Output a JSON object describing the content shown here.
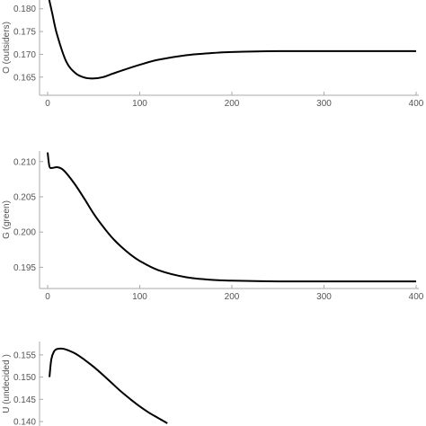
{
  "chart_data": [
    {
      "type": "line",
      "ylabel": "O (outsiders)",
      "xlim": [
        0,
        400
      ],
      "ylim": [
        0.162,
        0.1835
      ],
      "xticks": [
        0,
        100,
        200,
        300,
        400
      ],
      "yticks": [
        0.165,
        0.17,
        0.175,
        0.18
      ],
      "grid": false,
      "series": [
        {
          "color": "#000000",
          "x": [
            0,
            5,
            10,
            20,
            30,
            40,
            50,
            60,
            70,
            80,
            100,
            120,
            150,
            180,
            200,
            250,
            300,
            350,
            400
          ],
          "y": [
            0.1835,
            0.179,
            0.1745,
            0.1685,
            0.1659,
            0.1649,
            0.1647,
            0.165,
            0.1657,
            0.1664,
            0.1677,
            0.1688,
            0.1698,
            0.1703,
            0.1705,
            0.1707,
            0.1707,
            0.1707,
            0.1707
          ]
        }
      ]
    },
    {
      "type": "line",
      "ylabel": "G (green)",
      "xlim": [
        0,
        400
      ],
      "ylim": [
        0.1925,
        0.2115
      ],
      "xticks": [
        0,
        100,
        200,
        300,
        400
      ],
      "yticks": [
        0.195,
        0.2,
        0.205,
        0.21
      ],
      "grid": false,
      "series": [
        {
          "color": "#000000",
          "x": [
            0,
            2,
            5,
            10,
            15,
            20,
            30,
            40,
            50,
            60,
            70,
            80,
            90,
            100,
            120,
            150,
            180,
            200,
            250,
            300,
            350,
            400
          ],
          "y": [
            0.2113,
            0.2093,
            0.2091,
            0.2092,
            0.209,
            0.2084,
            0.2067,
            0.2047,
            0.2026,
            0.2008,
            0.1992,
            0.1979,
            0.1968,
            0.1959,
            0.1946,
            0.1936,
            0.1932,
            0.1931,
            0.193,
            0.193,
            0.193,
            0.193
          ]
        }
      ]
    },
    {
      "type": "line",
      "ylabel": "U (undecided )",
      "xlim": [
        0,
        400
      ],
      "ylim": [
        0.139,
        0.158
      ],
      "yticks": [
        0.14,
        0.145,
        0.15,
        0.155
      ],
      "grid": false,
      "series": [
        {
          "color": "#000000",
          "x": [
            2,
            4,
            7,
            10,
            15,
            20,
            30,
            40,
            50,
            60,
            70,
            80,
            90,
            100,
            110,
            120,
            130
          ],
          "y": [
            0.15,
            0.154,
            0.1558,
            0.1563,
            0.1564,
            0.1562,
            0.1553,
            0.1539,
            0.1523,
            0.1505,
            0.1486,
            0.1467,
            0.145,
            0.1434,
            0.142,
            0.1408,
            0.1396
          ]
        }
      ]
    }
  ]
}
